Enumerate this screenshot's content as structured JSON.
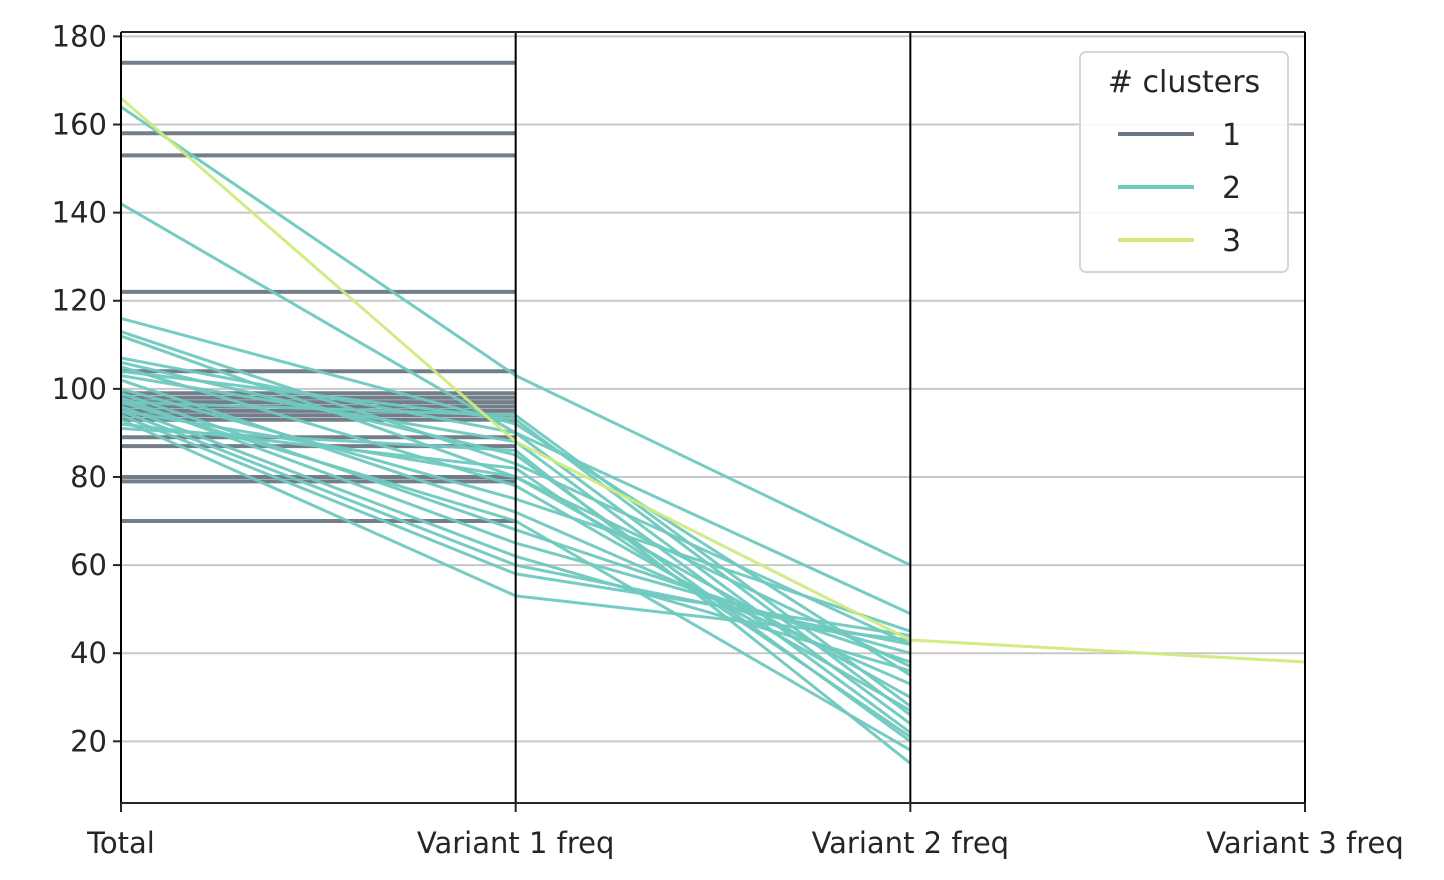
{
  "chart_data": {
    "type": "parallel_coordinates",
    "axes": [
      "Total",
      "Variant 1 freq",
      "Variant 2 freq",
      "Variant 3 freq"
    ],
    "ylim": [
      6,
      181
    ],
    "yticks": [
      20,
      40,
      60,
      80,
      100,
      120,
      140,
      160,
      180
    ],
    "grid": true,
    "legend": {
      "title": "# clusters",
      "placement": "top-right",
      "entries": [
        {
          "label": "1",
          "color": "#6b7785"
        },
        {
          "label": "2",
          "color": "#6fc9bf"
        },
        {
          "label": "3",
          "color": "#cdeb7e"
        }
      ]
    },
    "series": [
      {
        "name": "1",
        "color": "#6b7785",
        "lines": [
          [
            174,
            174
          ],
          [
            158,
            158
          ],
          [
            153,
            153
          ],
          [
            122,
            122
          ],
          [
            104,
            104
          ],
          [
            99,
            99
          ],
          [
            98,
            98
          ],
          [
            97,
            97
          ],
          [
            96,
            96
          ],
          [
            95,
            95
          ],
          [
            94,
            94
          ],
          [
            93,
            93
          ],
          [
            89,
            89
          ],
          [
            87,
            87
          ],
          [
            80,
            80
          ],
          [
            79,
            79
          ],
          [
            70,
            70
          ]
        ]
      },
      {
        "name": "2",
        "color": "#6fc9bf",
        "lines": [
          [
            164,
            103,
            60
          ],
          [
            142,
            90,
            49
          ],
          [
            116,
            92,
            35
          ],
          [
            113,
            83,
            42
          ],
          [
            112,
            80,
            30
          ],
          [
            107,
            90,
            24
          ],
          [
            106,
            85,
            20
          ],
          [
            105,
            78,
            27
          ],
          [
            104,
            93,
            26
          ],
          [
            103,
            88,
            22
          ],
          [
            102,
            72,
            33
          ],
          [
            100,
            75,
            45
          ],
          [
            99,
            68,
            38
          ],
          [
            98,
            65,
            40
          ],
          [
            97,
            70,
            18
          ],
          [
            96,
            62,
            36
          ],
          [
            95,
            60,
            42
          ],
          [
            94,
            58,
            44
          ],
          [
            93,
            53,
            43
          ],
          [
            92,
            82,
            21
          ],
          [
            91,
            86,
            15
          ],
          [
            97,
            94,
            28
          ],
          [
            95,
            80,
            37
          ]
        ]
      },
      {
        "name": "3",
        "color": "#cdeb7e",
        "lines": [
          [
            166,
            88,
            43,
            38
          ]
        ]
      }
    ]
  }
}
